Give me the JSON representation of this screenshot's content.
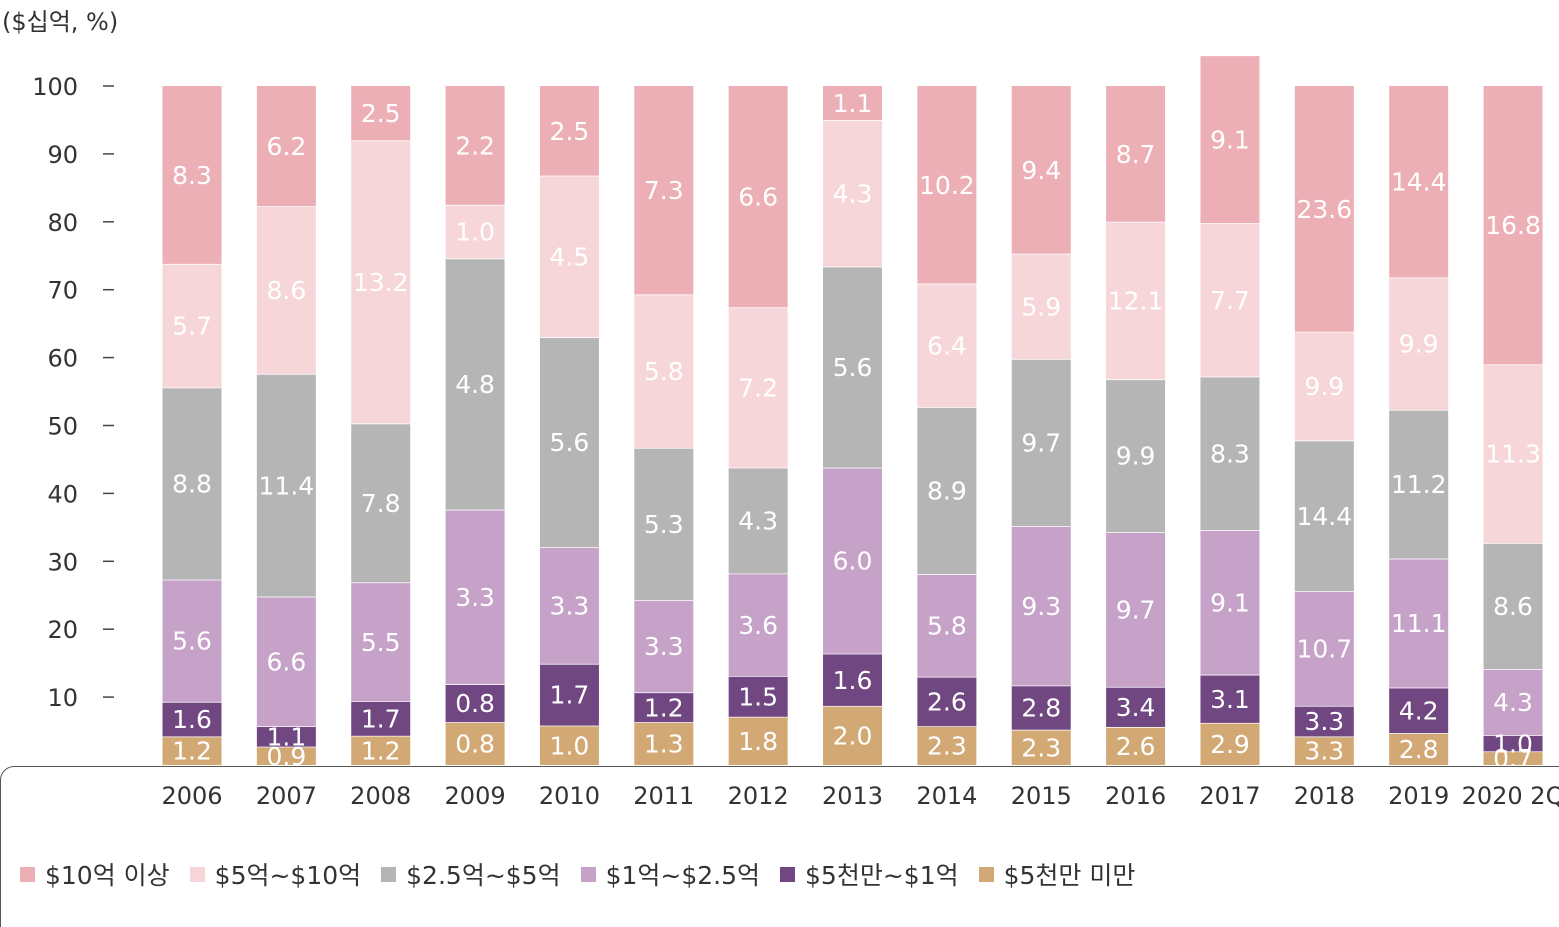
{
  "unit_label": "($십억, %)",
  "colors": {
    "s1": "#ecafb5",
    "s2": "#f7d6d9",
    "s3": "#b5b5b5",
    "s4": "#c6a2c9",
    "s5": "#714782",
    "s6": "#d2a874"
  },
  "legend": [
    {
      "label": "$10억 이상",
      "color": "#ecafb5"
    },
    {
      "label": "$5억~$10억",
      "color": "#f7d6d9"
    },
    {
      "label": "$2.5억~$5억",
      "color": "#b5b5b5"
    },
    {
      "label": "$1억~$2.5억",
      "color": "#c6a2c9"
    },
    {
      "label": "$5천만~$1억",
      "color": "#714782"
    },
    {
      "label": "$5천만 미만",
      "color": "#d2a874"
    }
  ],
  "chart_data": {
    "type": "bar",
    "stacked": true,
    "normalized": true,
    "ylim": [
      0,
      100
    ],
    "yticks": [
      "10",
      "20",
      "30",
      "40",
      "50",
      "60",
      "70",
      "80",
      "90",
      "100"
    ],
    "categories": [
      "2006",
      "2007",
      "2008",
      "2009",
      "2010",
      "2011",
      "2012",
      "2013",
      "2014",
      "2015",
      "2016",
      "2017",
      "2018",
      "2019",
      "2020 2Q"
    ],
    "series": [
      {
        "name": "$5천만 미만",
        "labels": [
          "1.2",
          "0.9",
          "1.2",
          "0.8",
          "1.0",
          "1.3",
          "1.8",
          "2.0",
          "2.3",
          "2.3",
          "2.6",
          "2.9",
          "3.3",
          "2.8",
          "0.7"
        ],
        "shares": [
          4.2,
          2.7,
          4.3,
          6.3,
          5.8,
          6.3,
          7.1,
          8.7,
          5.7,
          5.2,
          5.6,
          6.2,
          4.2,
          4.7,
          2.0
        ]
      },
      {
        "name": "$5천만~$1억",
        "labels": [
          "1.6",
          "1.1",
          "1.7",
          "0.8",
          "1.7",
          "1.2",
          "1.5",
          "1.6",
          "2.6",
          "2.8",
          "3.4",
          "3.1",
          "3.3",
          "4.2",
          "1.0"
        ],
        "shares": [
          5.1,
          3.0,
          5.1,
          5.6,
          9.1,
          4.4,
          6.0,
          7.7,
          7.3,
          6.5,
          5.9,
          7.1,
          4.5,
          6.7,
          2.4
        ]
      },
      {
        "name": "$1억~$2.5억",
        "labels": [
          "5.6",
          "6.6",
          "5.5",
          "3.3",
          "3.3",
          "3.3",
          "3.6",
          "6.0",
          "5.8",
          "9.3",
          "9.7",
          "9.1",
          "10.7",
          "11.1",
          "4.3"
        ],
        "shares": [
          18.0,
          19.1,
          17.5,
          25.7,
          17.2,
          13.6,
          15.1,
          27.4,
          15.1,
          23.5,
          22.8,
          21.3,
          16.9,
          19.0,
          9.7
        ]
      },
      {
        "name": "$2.5억~$5억",
        "labels": [
          "8.8",
          "11.4",
          "7.8",
          "4.8",
          "5.6",
          "5.3",
          "4.3",
          "5.6",
          "8.9",
          "9.7",
          "9.9",
          "8.3",
          "14.4",
          "11.2",
          "8.6"
        ],
        "shares": [
          28.3,
          32.8,
          23.4,
          37.0,
          30.9,
          22.4,
          15.6,
          29.6,
          24.6,
          24.6,
          22.5,
          22.6,
          22.2,
          21.9,
          18.6
        ]
      },
      {
        "name": "$5억~$10억",
        "labels": [
          "5.7",
          "8.6",
          "13.2",
          "1.0",
          "4.5",
          "5.8",
          "7.2",
          "4.3",
          "6.4",
          "5.9",
          "12.1",
          "7.7",
          "9.9",
          "9.9",
          "11.3"
        ],
        "shares": [
          18.2,
          24.7,
          41.7,
          7.9,
          23.8,
          22.6,
          23.6,
          21.6,
          18.2,
          15.5,
          23.2,
          22.6,
          16.0,
          19.5,
          26.3
        ]
      },
      {
        "name": "$10억 이상",
        "labels": [
          "8.3",
          "6.2",
          "2.5",
          "2.2",
          "2.5",
          "7.3",
          "6.6",
          "1.1",
          "10.2",
          "9.4",
          "8.7",
          "9.1",
          "23.6",
          "14.4",
          "16.8"
        ],
        "shares": [
          26.2,
          17.7,
          8.0,
          17.5,
          13.2,
          30.7,
          32.6,
          5.0,
          29.1,
          24.7,
          20.0,
          24.6,
          36.2,
          28.2,
          41.0
        ]
      }
    ]
  }
}
